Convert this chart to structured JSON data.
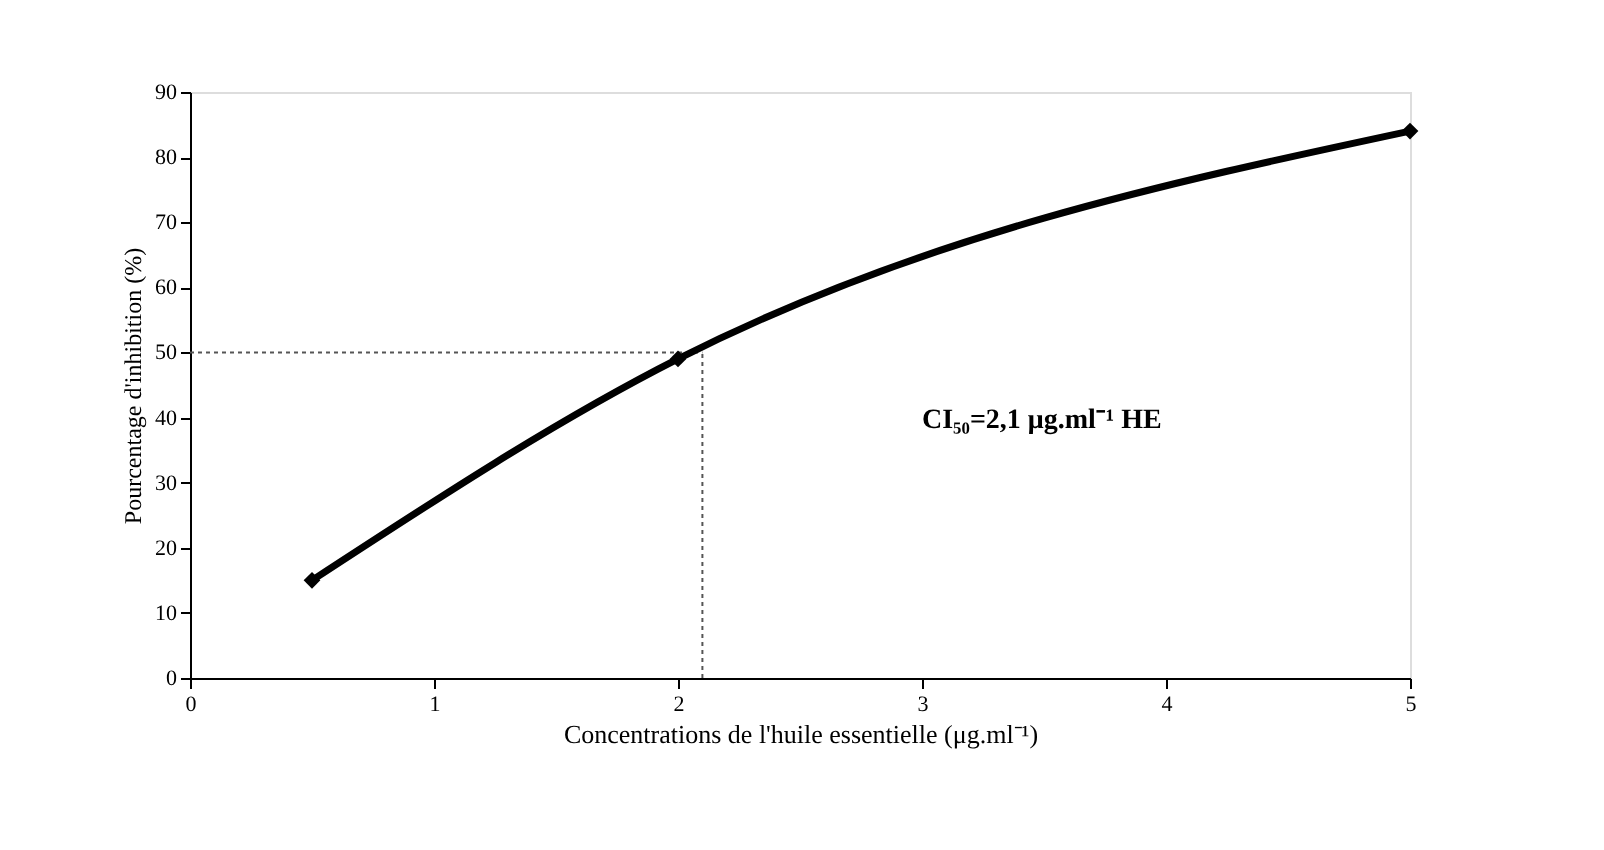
{
  "chart_data": {
    "type": "line",
    "xlabel": "Concentrations de l'huile essentielle (μg.ml⁻¹)",
    "ylabel": "Pourcentage d'inhibition (%)",
    "x": [
      0.5,
      2,
      5
    ],
    "values": [
      15,
      49,
      84
    ],
    "color": "#000000",
    "marker": "diamond",
    "line_style": "solid",
    "xlim": [
      0,
      5
    ],
    "xticks": [
      0,
      1,
      2,
      3,
      4,
      5
    ],
    "ylim": [
      0,
      90
    ],
    "yticks": [
      0,
      10,
      20,
      30,
      40,
      50,
      60,
      70,
      80,
      90
    ],
    "grid": false,
    "ref_lines": [
      {
        "axis": "y",
        "value": 50,
        "line_style": "dotted",
        "color": "#555555"
      },
      {
        "axis": "x",
        "value": 2.1,
        "line_style": "dotted",
        "color": "#555555"
      }
    ],
    "annotations": [
      "CI₅₀=2,1 μg.ml⁻¹ HE"
    ]
  }
}
